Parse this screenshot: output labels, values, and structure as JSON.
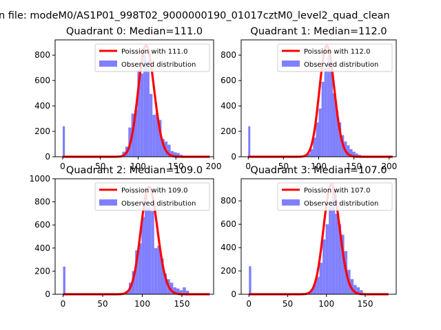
{
  "figure": {
    "suptitle": "n file: modeM0/AS1P01_998T02_9000000190_01017cztM0_level2_quad_clean"
  },
  "colors": {
    "poisson_line": "#ff0000",
    "histogram": "#8080ff"
  },
  "chart_data": [
    {
      "type": "bar+line",
      "title": "Quadrant 0: Median=111.0",
      "xlim": [
        -10,
        200
      ],
      "ylim": [
        0,
        920
      ],
      "xticks": [
        0,
        50,
        100,
        150,
        200
      ],
      "yticks": [
        0,
        200,
        400,
        600,
        800
      ],
      "legend": {
        "placement": "top-right",
        "entries": [
          "Poission with 111.0",
          "Observed distribution"
        ]
      },
      "series": [
        {
          "name": "Poission with 111.0",
          "kind": "line",
          "mu": 111,
          "x_range": [
            0,
            195
          ],
          "peak": 875
        },
        {
          "name": "Observed distribution",
          "kind": "histogram",
          "bins": [
            [
              0,
              3,
              240
            ],
            [
              75,
              79,
              10
            ],
            [
              79,
              83,
              40
            ],
            [
              83,
              87,
              80
            ],
            [
              87,
              91,
              230
            ],
            [
              91,
              95,
              340
            ],
            [
              95,
              99,
              370
            ],
            [
              99,
              103,
              680
            ],
            [
              103,
              107,
              655
            ],
            [
              107,
              111,
              800
            ],
            [
              111,
              115,
              760
            ],
            [
              115,
              119,
              495
            ],
            [
              119,
              123,
              330
            ],
            [
              123,
              127,
              345
            ],
            [
              127,
              131,
              290
            ],
            [
              131,
              135,
              140
            ],
            [
              135,
              139,
              120
            ],
            [
              139,
              143,
              95
            ],
            [
              143,
              147,
              45
            ],
            [
              147,
              151,
              35
            ],
            [
              151,
              155,
              30
            ],
            [
              155,
              159,
              15
            ]
          ]
        }
      ]
    },
    {
      "type": "bar+line",
      "title": "Quadrant 1: Median=112.0",
      "xlim": [
        -10,
        210
      ],
      "ylim": [
        0,
        920
      ],
      "xticks": [
        0,
        50,
        100,
        150,
        200
      ],
      "yticks": [
        0,
        200,
        400,
        600,
        800
      ],
      "legend": {
        "placement": "top-right",
        "entries": [
          "Poission with 112.0",
          "Observed distribution"
        ]
      },
      "series": [
        {
          "name": "Poission with 112.0",
          "kind": "line",
          "mu": 112,
          "x_range": [
            0,
            205
          ],
          "peak": 875
        },
        {
          "name": "Observed distribution",
          "kind": "histogram",
          "bins": [
            [
              0,
              3,
              240
            ],
            [
              80,
              84,
              10
            ],
            [
              84,
              88,
              25
            ],
            [
              88,
              92,
              60
            ],
            [
              92,
              96,
              150
            ],
            [
              96,
              100,
              270
            ],
            [
              100,
              104,
              380
            ],
            [
              104,
              108,
              590
            ],
            [
              108,
              112,
              700
            ],
            [
              112,
              116,
              790
            ],
            [
              116,
              120,
              720
            ],
            [
              120,
              124,
              500
            ],
            [
              124,
              128,
              360
            ],
            [
              128,
              132,
              270
            ],
            [
              132,
              136,
              170
            ],
            [
              136,
              140,
              120
            ],
            [
              140,
              144,
              90
            ],
            [
              144,
              148,
              60
            ],
            [
              148,
              152,
              40
            ],
            [
              152,
              156,
              25
            ],
            [
              156,
              160,
              15
            ]
          ]
        }
      ]
    },
    {
      "type": "bar+line",
      "title": "Quadrant 2: Median=109.0",
      "xlim": [
        -10,
        190
      ],
      "ylim": [
        0,
        1000
      ],
      "xticks": [
        0,
        50,
        100,
        150
      ],
      "yticks": [
        0,
        200,
        400,
        600,
        800,
        1000
      ],
      "legend": {
        "placement": "top-right",
        "entries": [
          "Poission with 109.0",
          "Observed distribution"
        ]
      },
      "series": [
        {
          "name": "Poission with 109.0",
          "kind": "line",
          "mu": 109,
          "x_range": [
            0,
            185
          ],
          "peak": 930
        },
        {
          "name": "Observed distribution",
          "kind": "histogram",
          "bins": [
            [
              0,
              3,
              240
            ],
            [
              75,
              79,
              10
            ],
            [
              79,
              83,
              30
            ],
            [
              83,
              87,
              100
            ],
            [
              87,
              91,
              200
            ],
            [
              91,
              95,
              380
            ],
            [
              95,
              99,
              440
            ],
            [
              99,
              103,
              670
            ],
            [
              103,
              107,
              860
            ],
            [
              107,
              111,
              760
            ],
            [
              111,
              115,
              720
            ],
            [
              115,
              119,
              400
            ],
            [
              119,
              123,
              420
            ],
            [
              123,
              127,
              310
            ],
            [
              127,
              131,
              180
            ],
            [
              131,
              135,
              130
            ],
            [
              135,
              139,
              100
            ],
            [
              139,
              143,
              60
            ],
            [
              143,
              147,
              50
            ],
            [
              147,
              151,
              35
            ],
            [
              151,
              155,
              60
            ],
            [
              155,
              159,
              30
            ]
          ]
        }
      ]
    },
    {
      "type": "bar+line",
      "title": "Quadrant 3: Median=107.0",
      "xlim": [
        -10,
        190
      ],
      "ylim": [
        0,
        990
      ],
      "xticks": [
        0,
        50,
        100,
        150
      ],
      "yticks": [
        0,
        200,
        400,
        600,
        800
      ],
      "legend": {
        "placement": "top-right",
        "entries": [
          "Poission with 107.0",
          "Observed distribution"
        ]
      },
      "series": [
        {
          "name": "Poission with 107.0",
          "kind": "line",
          "mu": 107,
          "x_range": [
            0,
            180
          ],
          "peak": 940
        },
        {
          "name": "Observed distribution",
          "kind": "histogram",
          "bins": [
            [
              0,
              3,
              240
            ],
            [
              75,
              79,
              10
            ],
            [
              79,
              83,
              40
            ],
            [
              83,
              87,
              90
            ],
            [
              87,
              91,
              150
            ],
            [
              91,
              95,
              270
            ],
            [
              95,
              99,
              470
            ],
            [
              99,
              103,
              600
            ],
            [
              103,
              107,
              760
            ],
            [
              107,
              111,
              930
            ],
            [
              111,
              115,
              690
            ],
            [
              115,
              119,
              600
            ],
            [
              119,
              123,
              510
            ],
            [
              123,
              127,
              370
            ],
            [
              127,
              131,
              210
            ],
            [
              131,
              135,
              130
            ],
            [
              135,
              139,
              80
            ],
            [
              139,
              143,
              60
            ],
            [
              143,
              147,
              35
            ]
          ]
        }
      ]
    }
  ]
}
